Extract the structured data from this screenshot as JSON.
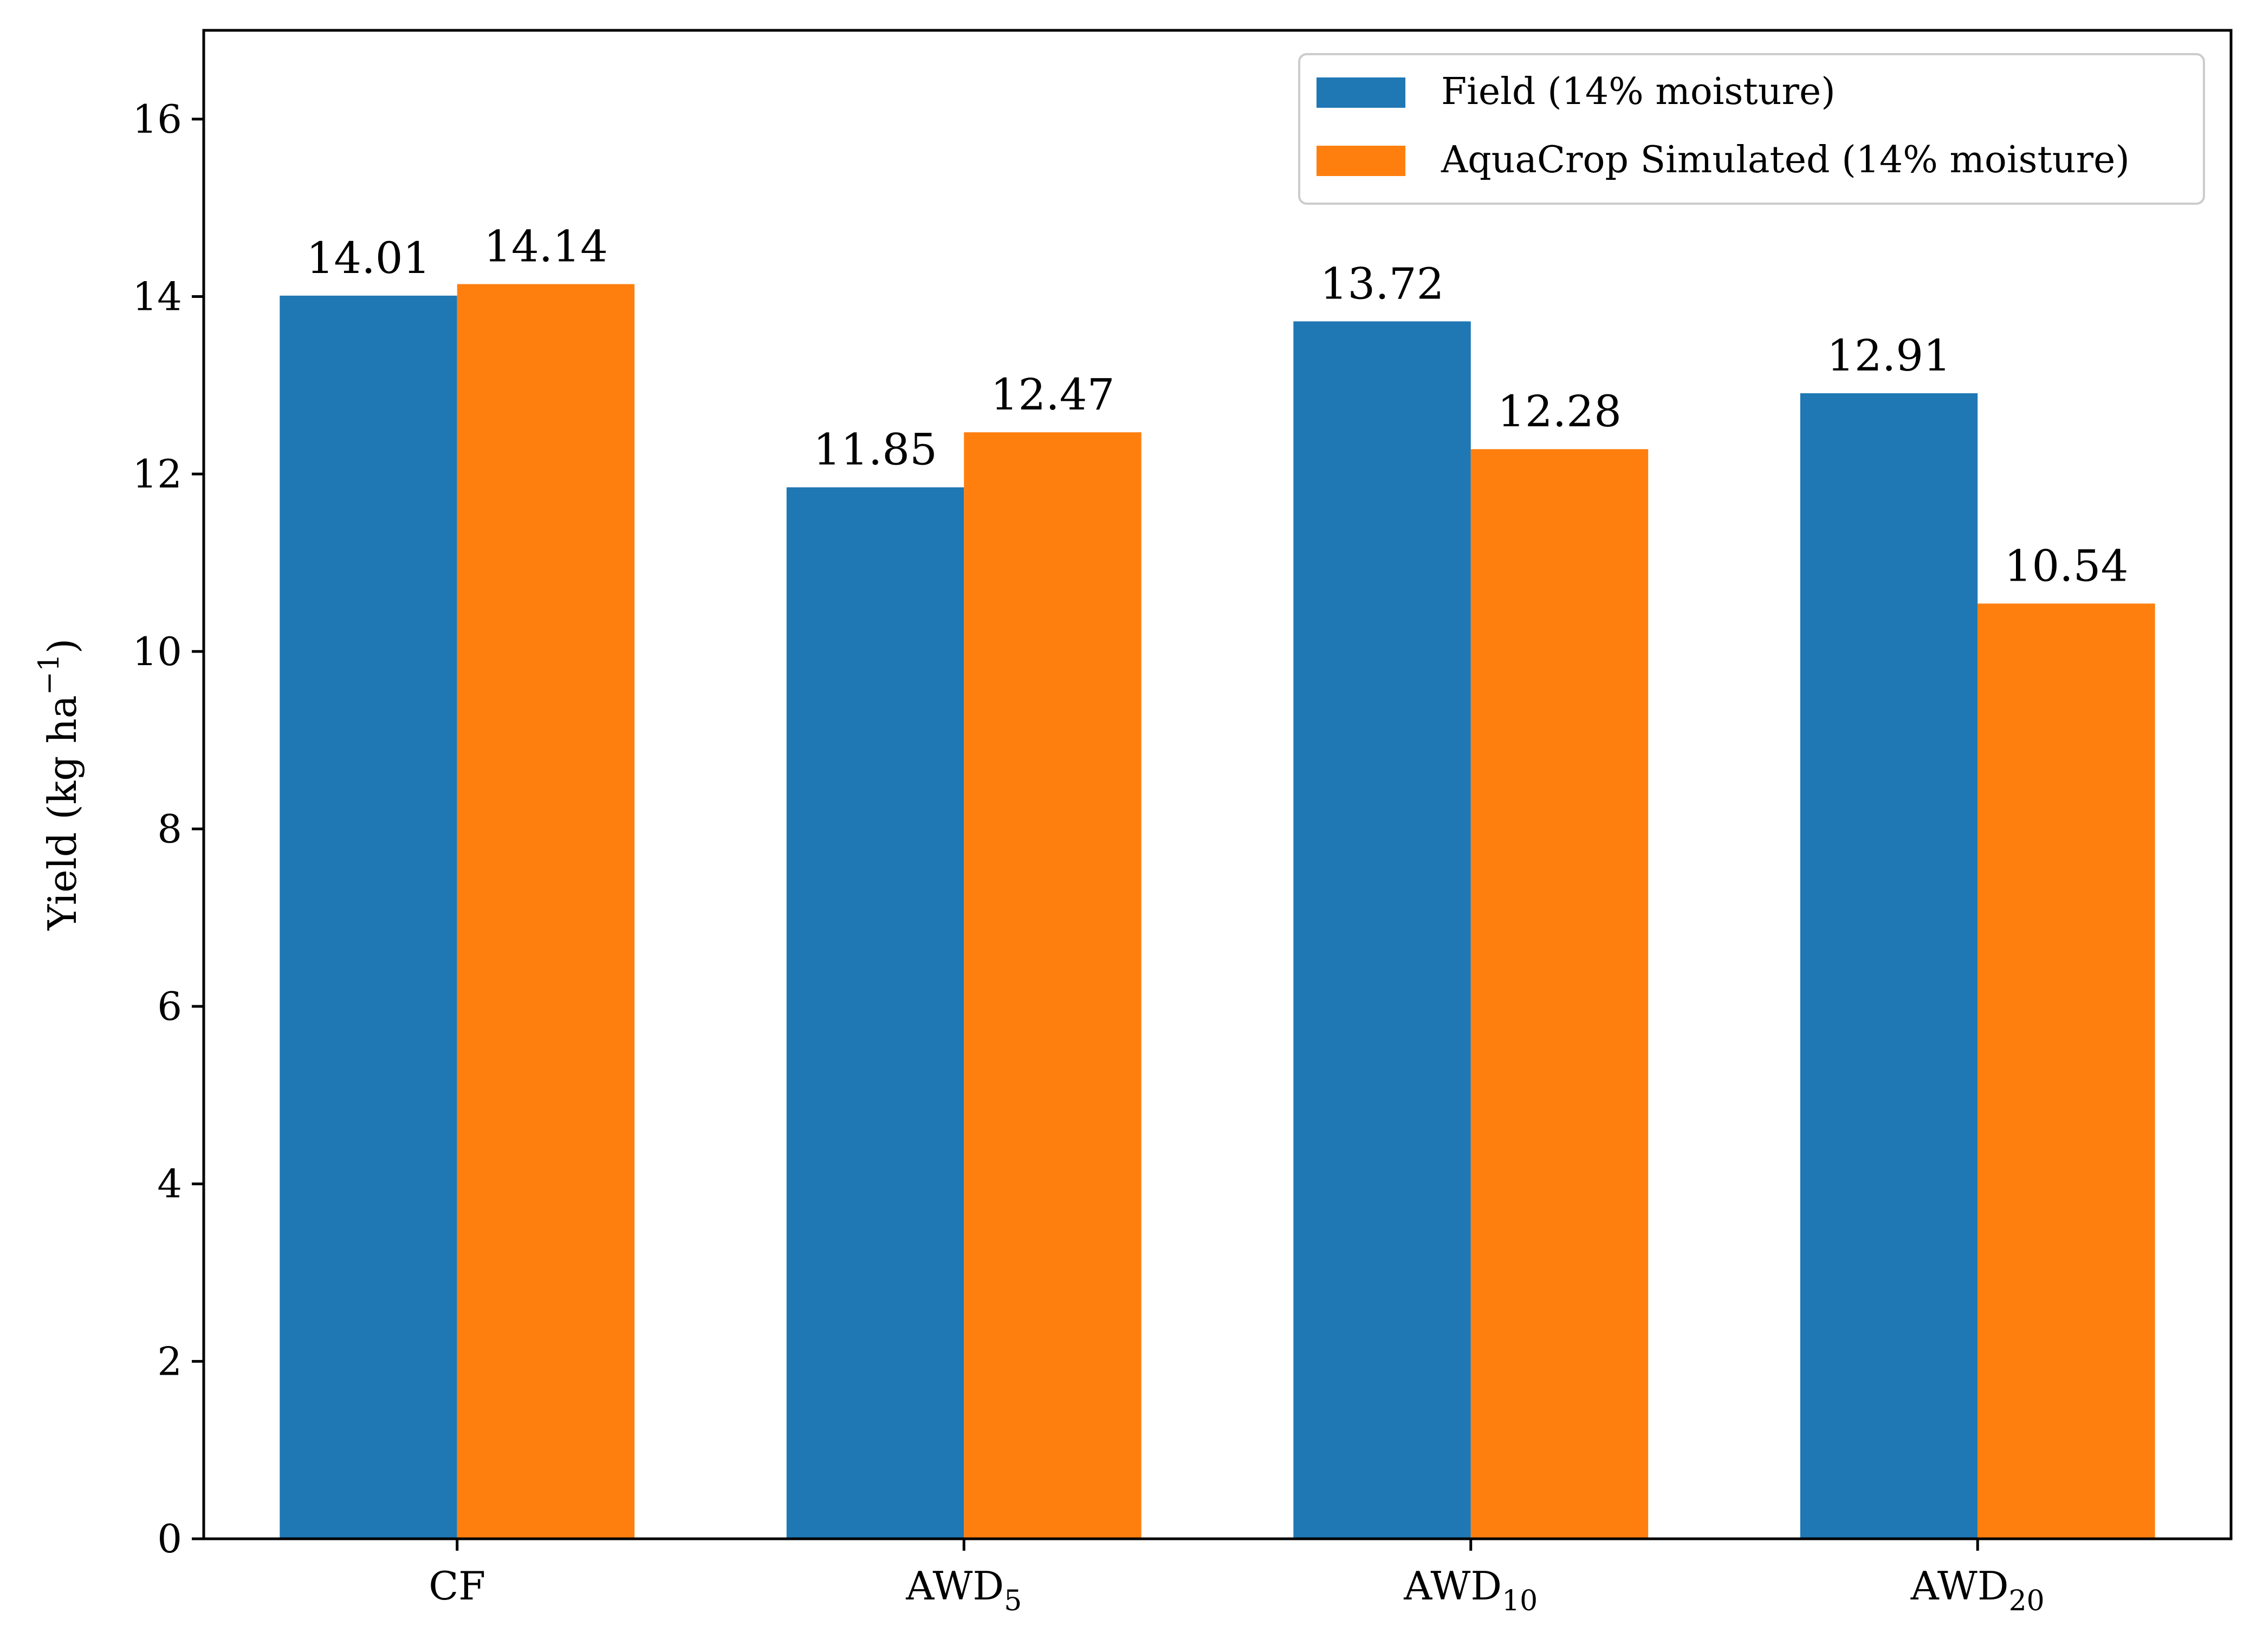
{
  "chart_data": {
    "type": "bar",
    "categories": [
      {
        "base": "CF",
        "sub": ""
      },
      {
        "base": "AWD",
        "sub": "5"
      },
      {
        "base": "AWD",
        "sub": "10"
      },
      {
        "base": "AWD",
        "sub": "20"
      }
    ],
    "series": [
      {
        "name": "Field (14% moisture)",
        "color": "#1f77b4",
        "values": [
          14.01,
          11.85,
          13.72,
          12.91
        ],
        "labels": [
          "14.01",
          "11.85",
          "13.72",
          "12.91"
        ]
      },
      {
        "name": "AquaCrop Simulated (14% moisture)",
        "color": "#ff7f0e",
        "values": [
          14.14,
          12.47,
          12.28,
          10.54
        ],
        "labels": [
          "14.14",
          "12.47",
          "12.28",
          "10.54"
        ]
      }
    ],
    "ylabel": {
      "main": "Yield (kg ha",
      "sup": "−1",
      "close": ")"
    },
    "xlabel": "",
    "ylim": [
      0,
      17
    ],
    "yticks": [
      0,
      2,
      4,
      6,
      8,
      10,
      12,
      14,
      16
    ],
    "grid": false,
    "legend_position": "top-right"
  }
}
